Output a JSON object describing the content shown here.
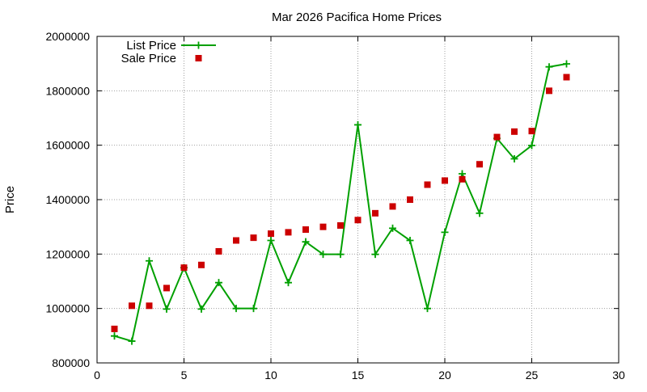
{
  "chart_data": {
    "type": "line",
    "title": "Mar 2026 Pacifica Home Prices",
    "xlabel": "",
    "ylabel": "Price",
    "xlim": [
      0,
      30
    ],
    "ylim": [
      800000,
      2000000
    ],
    "x_ticks": [
      0,
      5,
      10,
      15,
      20,
      25,
      30
    ],
    "y_ticks": [
      800000,
      1000000,
      1200000,
      1400000,
      1600000,
      1800000,
      2000000
    ],
    "grid": true,
    "legend_position": "top-left",
    "series": [
      {
        "name": "List Price",
        "style": "line-with-plus-markers",
        "color": "#00a000",
        "x": [
          1,
          2,
          3,
          4,
          5,
          6,
          7,
          8,
          9,
          10,
          11,
          12,
          13,
          14,
          15,
          16,
          17,
          18,
          19,
          20,
          21,
          22,
          23,
          24,
          25,
          26,
          27
        ],
        "values": [
          899000,
          880000,
          1175000,
          998000,
          1150000,
          998000,
          1095000,
          1000000,
          1000000,
          1250000,
          1095000,
          1245000,
          1199000,
          1199000,
          1675000,
          1199000,
          1295000,
          1250000,
          1000000,
          1280000,
          1495000,
          1350000,
          1625000,
          1550000,
          1599000,
          1888000,
          1899000
        ]
      },
      {
        "name": "Sale Price",
        "style": "square-markers",
        "color": "#cc0000",
        "x": [
          1,
          2,
          3,
          4,
          5,
          6,
          7,
          8,
          9,
          10,
          11,
          12,
          13,
          14,
          15,
          16,
          17,
          18,
          19,
          20,
          21,
          22,
          23,
          24,
          25,
          26,
          27
        ],
        "values": [
          925000,
          1010000,
          1010000,
          1075000,
          1150000,
          1160000,
          1210000,
          1250000,
          1260000,
          1275000,
          1280000,
          1290000,
          1300000,
          1305000,
          1325000,
          1350000,
          1375000,
          1400000,
          1455000,
          1470000,
          1475000,
          1530000,
          1630000,
          1650000,
          1652000,
          1800000,
          1850000
        ]
      }
    ]
  }
}
